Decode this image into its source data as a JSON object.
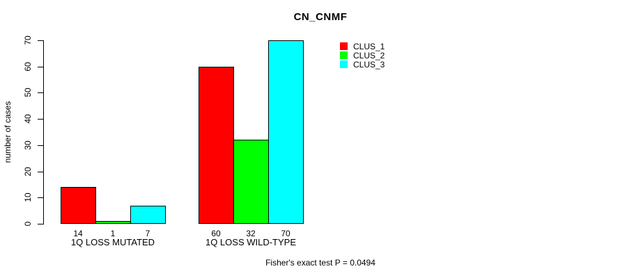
{
  "chart_data": {
    "type": "bar",
    "title": "CN_CNMF",
    "ylabel": "number of cases",
    "xlabel": "",
    "categories": [
      "1Q LOSS MUTATED",
      "1Q LOSS WILD-TYPE"
    ],
    "series": [
      {
        "name": "CLUS_1",
        "color": "#ff0000",
        "values": [
          14,
          60
        ]
      },
      {
        "name": "CLUS_2",
        "color": "#00ff00",
        "values": [
          1,
          32
        ]
      },
      {
        "name": "CLUS_3",
        "color": "#00ffff",
        "values": [
          7,
          70
        ]
      }
    ],
    "ylim": [
      0,
      70
    ],
    "yticks": [
      0,
      10,
      20,
      30,
      40,
      50,
      60,
      70
    ],
    "grid": false,
    "legend_position": "top-right",
    "bar_border_color": "#000000",
    "show_bar_value_labels": true,
    "annotation": "Fisher's exact test P = 0.0494",
    "background": "#ffffff"
  }
}
